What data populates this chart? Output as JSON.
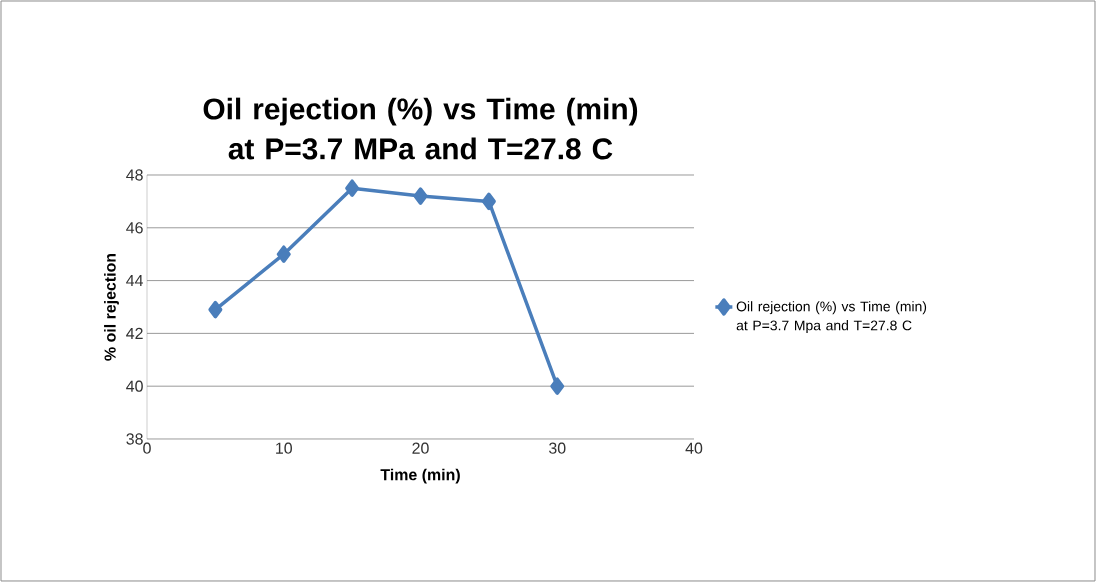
{
  "chart_data": {
    "type": "line",
    "title": "Oil rejection (%) vs Time (min) at P=3.7 MPa and T=27.8 C",
    "xlabel": "Time (min)",
    "ylabel": "% oil rejection",
    "x": [
      5,
      10,
      15,
      20,
      25,
      30
    ],
    "series": [
      {
        "name": "Oil rejection (%) vs Time (min) at P=3.7 Mpa and T=27.8 C",
        "color": "#4a7ebb",
        "values": [
          42.9,
          45.0,
          47.5,
          47.2,
          47.0,
          40.0
        ]
      }
    ],
    "xlim": [
      0,
      40
    ],
    "xticks": [
      0,
      10,
      20,
      30,
      40
    ],
    "ylim": [
      38,
      48
    ],
    "yticks": [
      38,
      40,
      42,
      44,
      46,
      48
    ],
    "grid": "y",
    "legend": "right",
    "marker": "diamond",
    "line_style": "solid"
  }
}
